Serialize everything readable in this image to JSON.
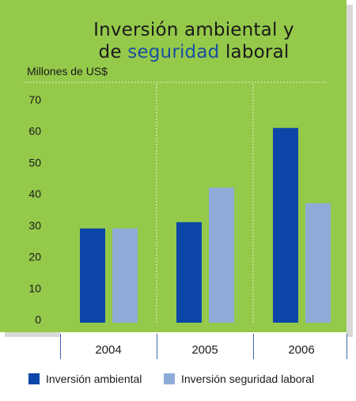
{
  "title": {
    "line1": "Inversión ambiental y",
    "line2_prefix": "de ",
    "line2_highlight": "seguridad",
    "line2_suffix": " laboral"
  },
  "colors": {
    "background": "#95c94a",
    "series_ambiental": "#0b46a8",
    "series_seguridad": "#8eabd8",
    "title_highlight": "#1a4fa0"
  },
  "chart_data": {
    "type": "bar",
    "categories": [
      "2004",
      "2005",
      "2006"
    ],
    "series": [
      {
        "name": "Inversión ambiental",
        "values": [
          29,
          31,
          61
        ]
      },
      {
        "name": "Inversión seguridad laboral",
        "values": [
          29,
          42,
          37
        ]
      }
    ],
    "ylabel": "Millones de US$",
    "ylim": [
      0,
      70
    ],
    "yticks": [
      0,
      10,
      20,
      30,
      40,
      50,
      60,
      70
    ],
    "grid": "vertical-dotted",
    "legend_position": "bottom"
  }
}
